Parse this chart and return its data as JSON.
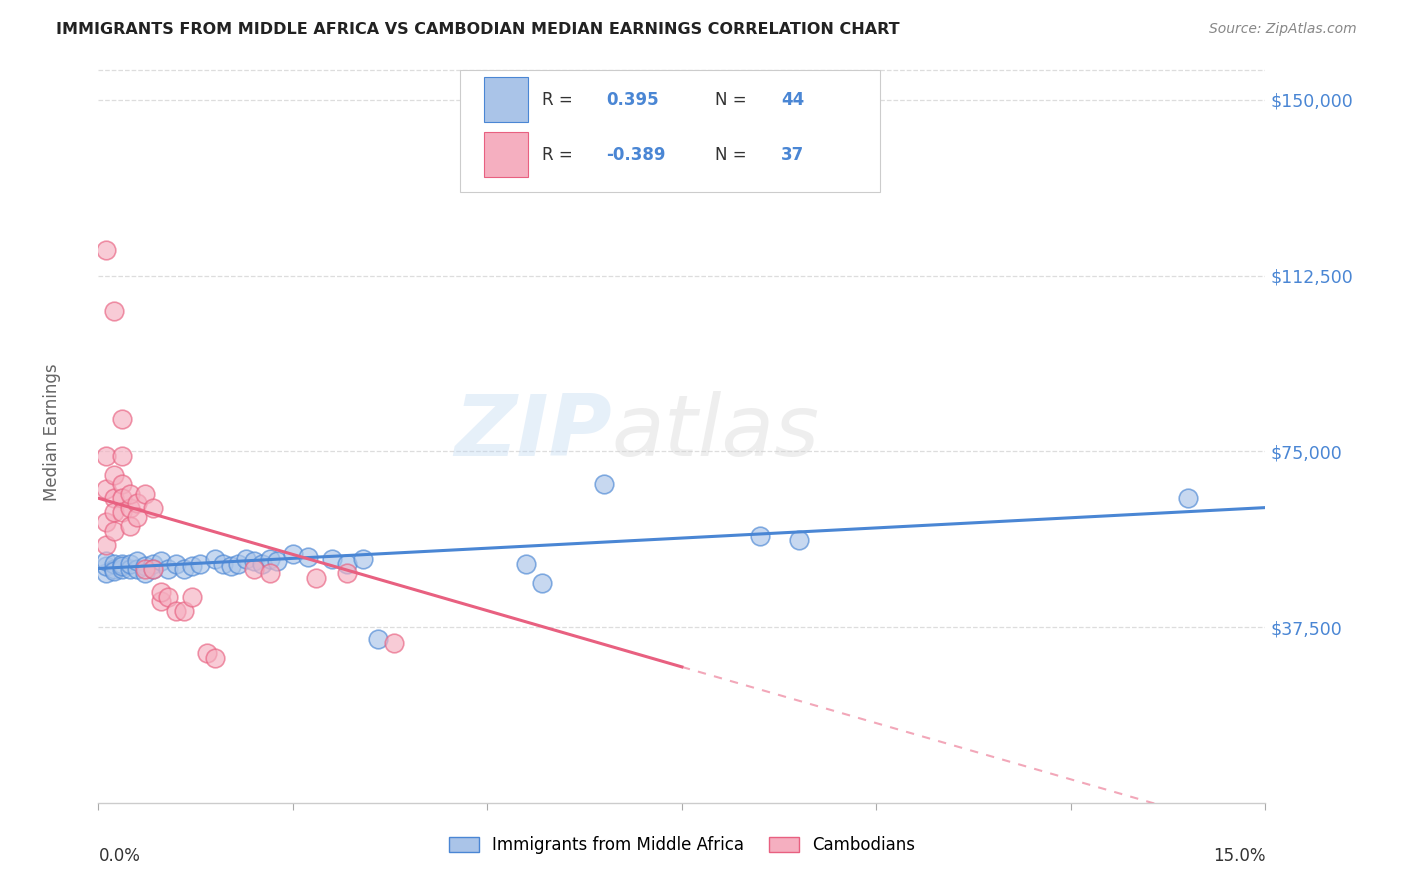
{
  "title": "IMMIGRANTS FROM MIDDLE AFRICA VS CAMBODIAN MEDIAN EARNINGS CORRELATION CHART",
  "source": "Source: ZipAtlas.com",
  "ylabel": "Median Earnings",
  "yticks": [
    37500,
    75000,
    112500,
    150000
  ],
  "ytick_labels": [
    "$37,500",
    "$75,000",
    "$112,500",
    "$150,000"
  ],
  "xmin": 0.0,
  "xmax": 0.15,
  "ymin": 0,
  "ymax": 158000,
  "blue_R": "0.395",
  "blue_N": "44",
  "pink_R": "-0.389",
  "pink_N": "37",
  "blue_color": "#aac4e8",
  "pink_color": "#f5afc0",
  "blue_line_color": "#4a86d4",
  "pink_line_color": "#e86080",
  "blue_scatter": [
    [
      0.001,
      49000
    ],
    [
      0.001,
      50500
    ],
    [
      0.001,
      51500
    ],
    [
      0.002,
      50000
    ],
    [
      0.002,
      51000
    ],
    [
      0.002,
      49500
    ],
    [
      0.003,
      50000
    ],
    [
      0.003,
      51000
    ],
    [
      0.003,
      50500
    ],
    [
      0.004,
      50000
    ],
    [
      0.004,
      51000
    ],
    [
      0.005,
      50000
    ],
    [
      0.005,
      51500
    ],
    [
      0.006,
      50500
    ],
    [
      0.006,
      49000
    ],
    [
      0.007,
      51000
    ],
    [
      0.007,
      50000
    ],
    [
      0.008,
      51500
    ],
    [
      0.009,
      50000
    ],
    [
      0.01,
      51000
    ],
    [
      0.011,
      50000
    ],
    [
      0.012,
      50500
    ],
    [
      0.013,
      51000
    ],
    [
      0.015,
      52000
    ],
    [
      0.016,
      51000
    ],
    [
      0.017,
      50500
    ],
    [
      0.018,
      51000
    ],
    [
      0.019,
      52000
    ],
    [
      0.02,
      51500
    ],
    [
      0.021,
      51000
    ],
    [
      0.022,
      52000
    ],
    [
      0.023,
      51500
    ],
    [
      0.025,
      53000
    ],
    [
      0.027,
      52500
    ],
    [
      0.03,
      52000
    ],
    [
      0.032,
      51000
    ],
    [
      0.034,
      52000
    ],
    [
      0.036,
      35000
    ],
    [
      0.055,
      51000
    ],
    [
      0.057,
      47000
    ],
    [
      0.065,
      68000
    ],
    [
      0.085,
      57000
    ],
    [
      0.09,
      56000
    ],
    [
      0.14,
      65000
    ]
  ],
  "pink_scatter": [
    [
      0.001,
      55000
    ],
    [
      0.001,
      60000
    ],
    [
      0.001,
      67000
    ],
    [
      0.001,
      74000
    ],
    [
      0.001,
      118000
    ],
    [
      0.002,
      65000
    ],
    [
      0.002,
      70000
    ],
    [
      0.002,
      62000
    ],
    [
      0.002,
      58000
    ],
    [
      0.002,
      105000
    ],
    [
      0.003,
      68000
    ],
    [
      0.003,
      65000
    ],
    [
      0.003,
      74000
    ],
    [
      0.003,
      62000
    ],
    [
      0.003,
      82000
    ],
    [
      0.004,
      63000
    ],
    [
      0.004,
      66000
    ],
    [
      0.004,
      59000
    ],
    [
      0.005,
      64000
    ],
    [
      0.005,
      61000
    ],
    [
      0.006,
      66000
    ],
    [
      0.006,
      50000
    ],
    [
      0.007,
      50000
    ],
    [
      0.007,
      63000
    ],
    [
      0.008,
      43000
    ],
    [
      0.008,
      45000
    ],
    [
      0.009,
      44000
    ],
    [
      0.01,
      41000
    ],
    [
      0.011,
      41000
    ],
    [
      0.012,
      44000
    ],
    [
      0.014,
      32000
    ],
    [
      0.015,
      31000
    ],
    [
      0.02,
      50000
    ],
    [
      0.022,
      49000
    ],
    [
      0.028,
      48000
    ],
    [
      0.032,
      49000
    ],
    [
      0.038,
      34000
    ]
  ],
  "pink_line_start_x": 0.0,
  "pink_line_end_solid_x": 0.075,
  "pink_line_end_dash_x": 0.15,
  "watermark_zip": "ZIP",
  "watermark_atlas": "atlas",
  "legend_blue_label": "Immigrants from Middle Africa",
  "legend_pink_label": "Cambodians"
}
